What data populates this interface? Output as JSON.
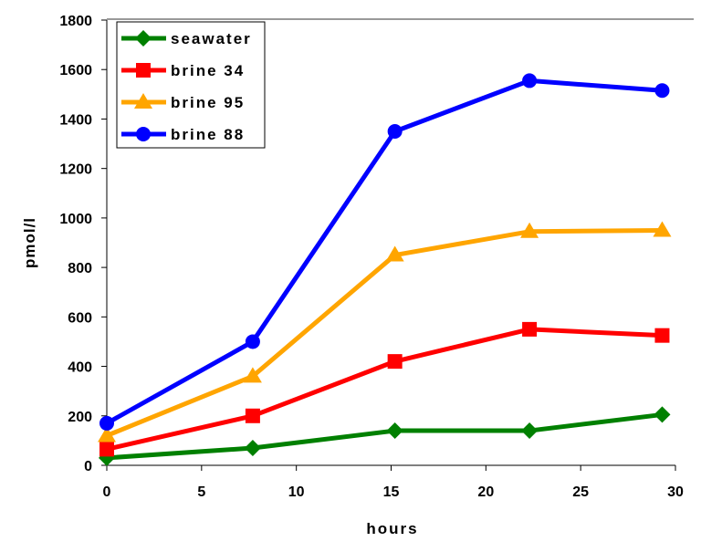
{
  "chart_data": {
    "type": "line",
    "title": "",
    "xlabel": "hours",
    "ylabel": "pmol/l",
    "xlim": [
      0,
      30
    ],
    "ylim": [
      0,
      1800
    ],
    "xticks": [
      "0",
      "5",
      "10",
      "15",
      "20",
      "25",
      "30"
    ],
    "yticks": [
      "0",
      "200",
      "400",
      "600",
      "800",
      "1000",
      "1200",
      "1400",
      "1600",
      "1800"
    ],
    "grid": false,
    "legend_position": "top-left",
    "x": [
      0,
      7.7,
      15.2,
      22.3,
      29.3
    ],
    "series": [
      {
        "name": "seawater",
        "color": "#008000",
        "marker": "diamond",
        "values": [
          30,
          70,
          140,
          140,
          205
        ]
      },
      {
        "name": "brine 34",
        "color": "#ff0000",
        "marker": "square",
        "values": [
          65,
          200,
          420,
          550,
          525
        ]
      },
      {
        "name": "brine 95",
        "color": "#ffa500",
        "marker": "triangle",
        "values": [
          120,
          360,
          850,
          945,
          950
        ]
      },
      {
        "name": "brine 88",
        "color": "#0000ff",
        "marker": "circle",
        "values": [
          170,
          500,
          1350,
          1555,
          1515
        ]
      }
    ]
  }
}
